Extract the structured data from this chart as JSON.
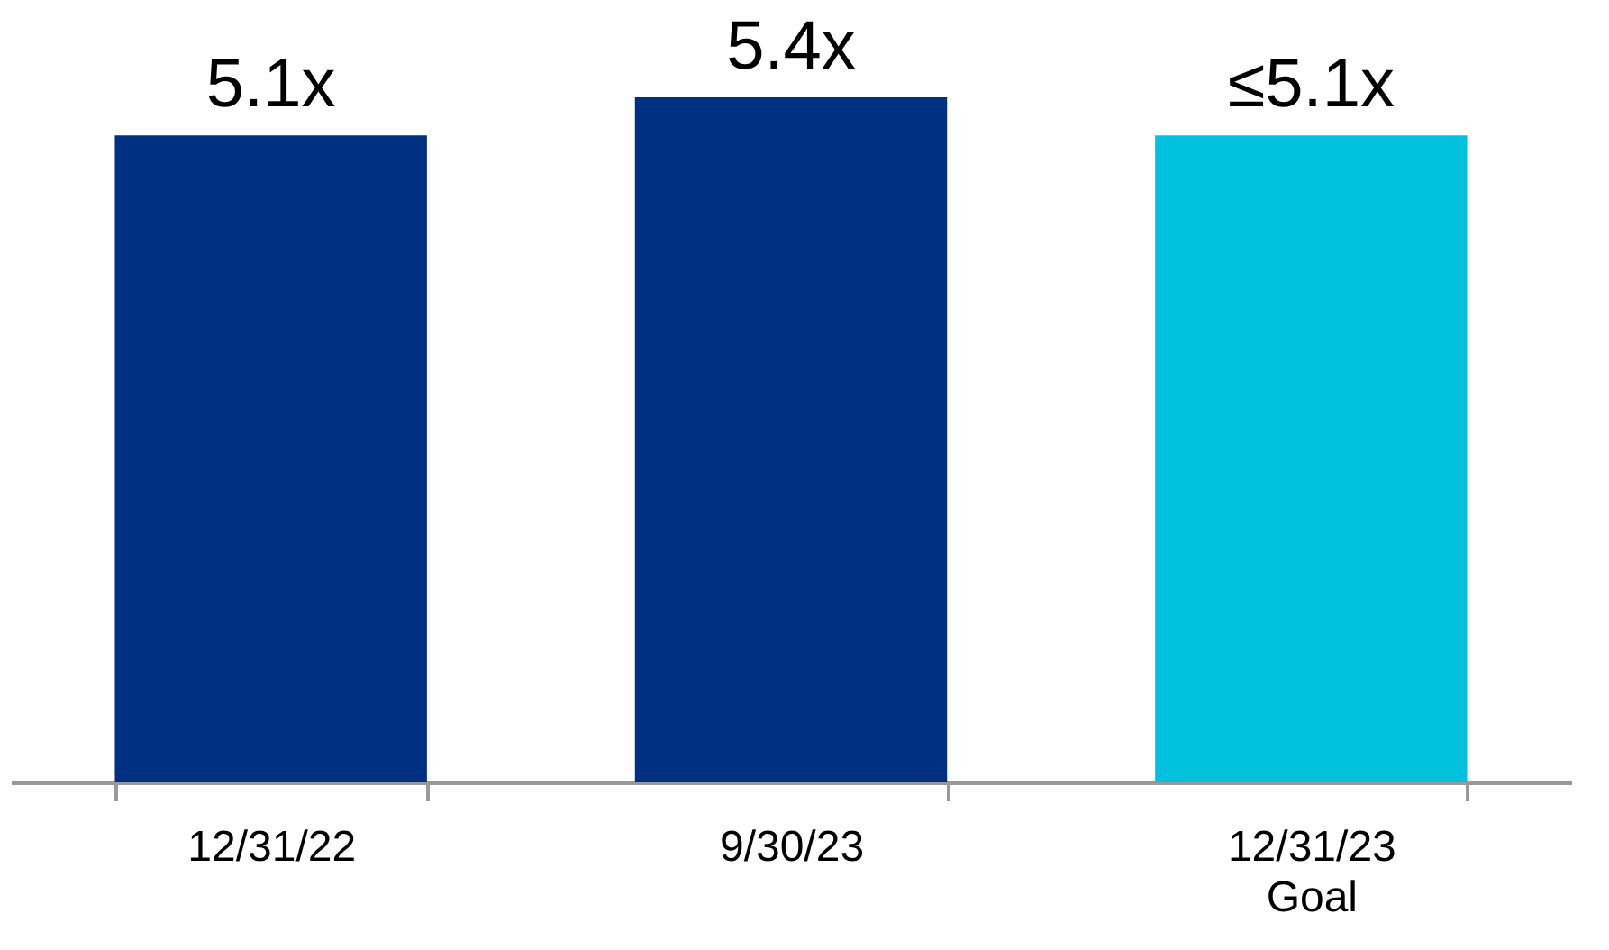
{
  "chart_data": {
    "type": "bar",
    "categories": [
      "12/31/22",
      "9/30/23",
      "12/31/23\nGoal"
    ],
    "values": [
      5.1,
      5.4,
      5.1
    ],
    "colors": [
      "#003082",
      "#003082",
      "#00c2de"
    ],
    "value_labels": [
      "5.1x",
      "5.4x",
      "≤5.1x"
    ],
    "tick_labels": "x"
  }
}
